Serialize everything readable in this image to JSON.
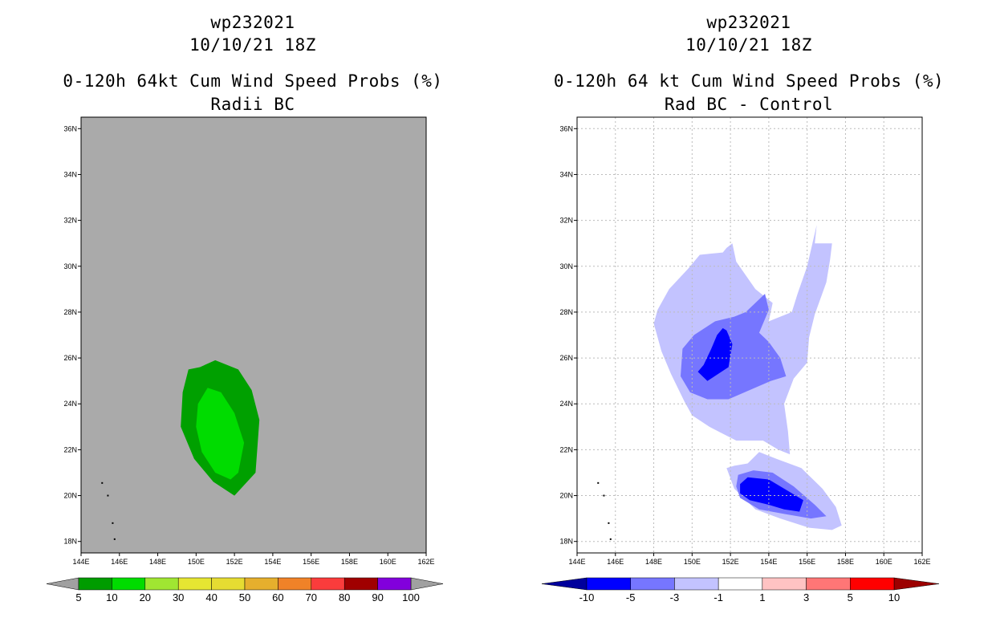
{
  "colors": {
    "panel_bg": "#aaaaaa",
    "green_dark": "#00a000",
    "green_light": "#00dc00",
    "blue_light": "#c3c3ff",
    "blue_mid": "#7676ff",
    "blue_dark": "#0000ff",
    "navy": "#00009c",
    "grid": "#bbbbbb"
  },
  "chart_data": [
    {
      "type": "contour-map",
      "title_line1": "wp232021",
      "title_line2": "10/10/21 18Z",
      "title_line3": "0-120h 64kt Cum Wind Speed Probs (%)",
      "title_line4": "Radii BC",
      "x_ticks": [
        "144E",
        "146E",
        "148E",
        "150E",
        "152E",
        "154E",
        "156E",
        "158E",
        "160E",
        "162E"
      ],
      "y_ticks": [
        "18N",
        "20N",
        "22N",
        "24N",
        "26N",
        "28N",
        "30N",
        "32N",
        "34N",
        "36N"
      ],
      "xlim": [
        144,
        162
      ],
      "ylim": [
        17.5,
        36.5
      ],
      "grid": false,
      "contours": [
        {
          "level": "5-10",
          "color": "#00a000",
          "lon": [
            150.2,
            151.0,
            152.2,
            152.9,
            153.3,
            153.1,
            152.0,
            150.9,
            149.9,
            149.2,
            149.3,
            149.6
          ],
          "lat": [
            25.6,
            25.9,
            25.5,
            24.6,
            23.3,
            21.0,
            20.0,
            20.6,
            21.6,
            23.0,
            24.5,
            25.5
          ]
        },
        {
          "level": "10-20",
          "color": "#00dc00",
          "lon": [
            150.1,
            150.6,
            151.3,
            152.0,
            152.5,
            152.2,
            151.8,
            151.0,
            150.3,
            150.0
          ],
          "lat": [
            24.0,
            24.7,
            24.5,
            23.6,
            22.3,
            21.0,
            20.7,
            21.0,
            21.9,
            23.0
          ]
        }
      ],
      "colorbar": {
        "labels": [
          "5",
          "10",
          "20",
          "30",
          "40",
          "50",
          "60",
          "70",
          "80",
          "90",
          "100"
        ],
        "colors": [
          "#009c00",
          "#00dc00",
          "#a0e632",
          "#e6e632",
          "#e6dc32",
          "#e6af2d",
          "#f08228",
          "#fa3c3c",
          "#a00000",
          "#8200dc"
        ]
      }
    },
    {
      "type": "contour-map",
      "title_line1": "wp232021",
      "title_line2": "10/10/21 18Z",
      "title_line3": "0-120h 64 kt Cum Wind Speed Probs (%)",
      "title_line4": "Rad BC - Control",
      "x_ticks": [
        "144E",
        "146E",
        "148E",
        "150E",
        "152E",
        "154E",
        "156E",
        "158E",
        "160E",
        "162E"
      ],
      "y_ticks": [
        "18N",
        "20N",
        "22N",
        "24N",
        "26N",
        "28N",
        "30N",
        "32N",
        "34N",
        "36N"
      ],
      "xlim": [
        144,
        162
      ],
      "ylim": [
        17.5,
        36.5
      ],
      "grid": true,
      "contours": [
        {
          "level": "-3 to -1",
          "color": "#c3c3ff",
          "lon": [
            150.4,
            151.6,
            151.8,
            152.1,
            152.3,
            153.3,
            154.2,
            154.0,
            155.2,
            155.5,
            156.0,
            156.5,
            156.4,
            157.3,
            157.2,
            157.0,
            156.4,
            156.1,
            156.0,
            155.3,
            154.8,
            155.0,
            155.1,
            154.5,
            153.7,
            152.3,
            150.9,
            150.0,
            149.6,
            148.9,
            148.4,
            148.0,
            148.2,
            148.8,
            149.8
          ],
          "lat": [
            30.5,
            30.6,
            30.8,
            31.0,
            30.2,
            29.0,
            28.4,
            27.6,
            28.0,
            28.8,
            30.0,
            31.8,
            31.0,
            31.0,
            30.3,
            29.3,
            27.9,
            26.9,
            25.8,
            25.1,
            24.0,
            22.8,
            21.8,
            22.0,
            22.4,
            22.4,
            23.0,
            23.5,
            24.1,
            25.3,
            26.3,
            27.5,
            28.1,
            29.0,
            29.9
          ]
        },
        {
          "level": "-5 to -3",
          "color": "#7676ff",
          "lon": [
            152.8,
            153.8,
            154.0,
            153.5,
            154.0,
            154.6,
            154.9,
            154.1,
            153.0,
            151.9,
            150.8,
            149.9,
            149.4,
            149.5,
            150.1,
            151.2,
            152.2
          ],
          "lat": [
            28.0,
            28.8,
            28.1,
            27.1,
            26.7,
            26.0,
            25.2,
            25.0,
            24.6,
            24.2,
            24.2,
            24.5,
            25.2,
            26.4,
            27.0,
            27.6,
            27.8
          ]
        },
        {
          "level": "-10 to -5",
          "color": "#0000ff",
          "lon": [
            151.6,
            151.8,
            152.1,
            151.9,
            150.8,
            150.3,
            150.6,
            151.0,
            151.3
          ],
          "lat": [
            27.3,
            27.2,
            26.6,
            25.6,
            25.0,
            25.4,
            25.7,
            26.4,
            27.0
          ]
        },
        {
          "level": "-3 to -1",
          "color": "#c3c3ff",
          "lon": [
            152.9,
            153.5,
            154.4,
            155.7,
            156.8,
            157.5,
            157.8,
            157.3,
            156.1,
            154.6,
            153.3,
            152.2,
            151.8,
            152.2
          ],
          "lat": [
            21.4,
            21.9,
            21.6,
            21.2,
            20.3,
            19.5,
            18.7,
            18.5,
            18.6,
            19.0,
            19.4,
            20.3,
            21.2,
            21.3
          ]
        },
        {
          "level": "-5 to -3",
          "color": "#7676ff",
          "lon": [
            153.2,
            154.2,
            155.3,
            156.4,
            157.0,
            156.2,
            154.8,
            153.5,
            152.5,
            152.3,
            152.4
          ],
          "lat": [
            21.1,
            21.0,
            20.4,
            19.6,
            19.1,
            19.0,
            19.2,
            19.4,
            19.9,
            20.4,
            20.9
          ]
        },
        {
          "level": "-10 to -5",
          "color": "#0000ff",
          "lon": [
            152.9,
            154.0,
            155.0,
            155.8,
            155.6,
            154.8,
            154.0,
            153.0,
            152.5,
            152.5
          ],
          "lat": [
            20.8,
            20.7,
            20.2,
            19.8,
            19.3,
            19.4,
            19.6,
            19.8,
            20.1,
            20.5
          ]
        }
      ],
      "colorbar": {
        "labels": [
          "-10",
          "-5",
          "-3",
          "-1",
          "1",
          "3",
          "5",
          "10"
        ],
        "colors": [
          "#0000ff",
          "#7676ff",
          "#c3c3ff",
          "#ffffff",
          "#ffc3c3",
          "#ff7676",
          "#ff0000"
        ],
        "ends": [
          "#00009c",
          "#9c0000"
        ]
      }
    }
  ]
}
